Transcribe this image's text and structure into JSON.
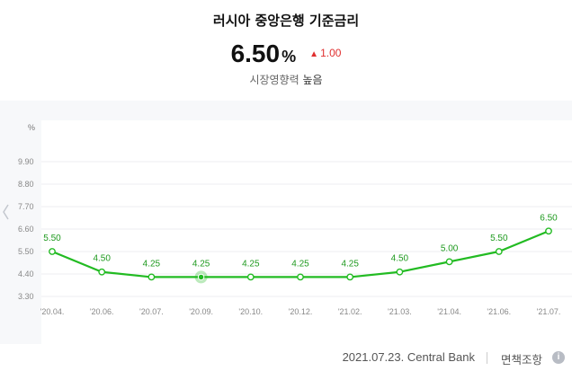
{
  "header": {
    "title": "러시아 중앙은행 기준금리",
    "rate_value": "6.50",
    "rate_unit": "%",
    "change_icon": "up-triangle-icon",
    "change_value": "1.00",
    "impact_label": "시장영향력",
    "impact_level": "높음"
  },
  "colors": {
    "line": "#22bb22",
    "up": "#e02f2f",
    "label": "#1f9a1f"
  },
  "chart_data": {
    "type": "line",
    "ylabel": "%",
    "y_ticks": [
      "3.30",
      "4.40",
      "5.50",
      "6.60",
      "7.70",
      "8.80",
      "9.90"
    ],
    "ylim": [
      3.3,
      9.9
    ],
    "categories": [
      "'20.04.",
      "'20.06.",
      "'20.07.",
      "'20.09.",
      "'20.10.",
      "'20.12.",
      "'21.02.",
      "'21.03.",
      "'21.04.",
      "'21.06.",
      "'21.07."
    ],
    "values": [
      5.5,
      4.5,
      4.25,
      4.25,
      4.25,
      4.25,
      4.25,
      4.5,
      5.0,
      5.5,
      6.5
    ],
    "data_labels": [
      "5.50",
      "4.50",
      "4.25",
      "4.25",
      "4.25",
      "4.25",
      "4.25",
      "4.50",
      "5.00",
      "5.50",
      "6.50"
    ],
    "highlighted_index": 3,
    "grid": true
  },
  "footer": {
    "source": "2021.07.23. Central Bank",
    "disclaimer": "면책조항",
    "info_icon": "info-icon"
  }
}
